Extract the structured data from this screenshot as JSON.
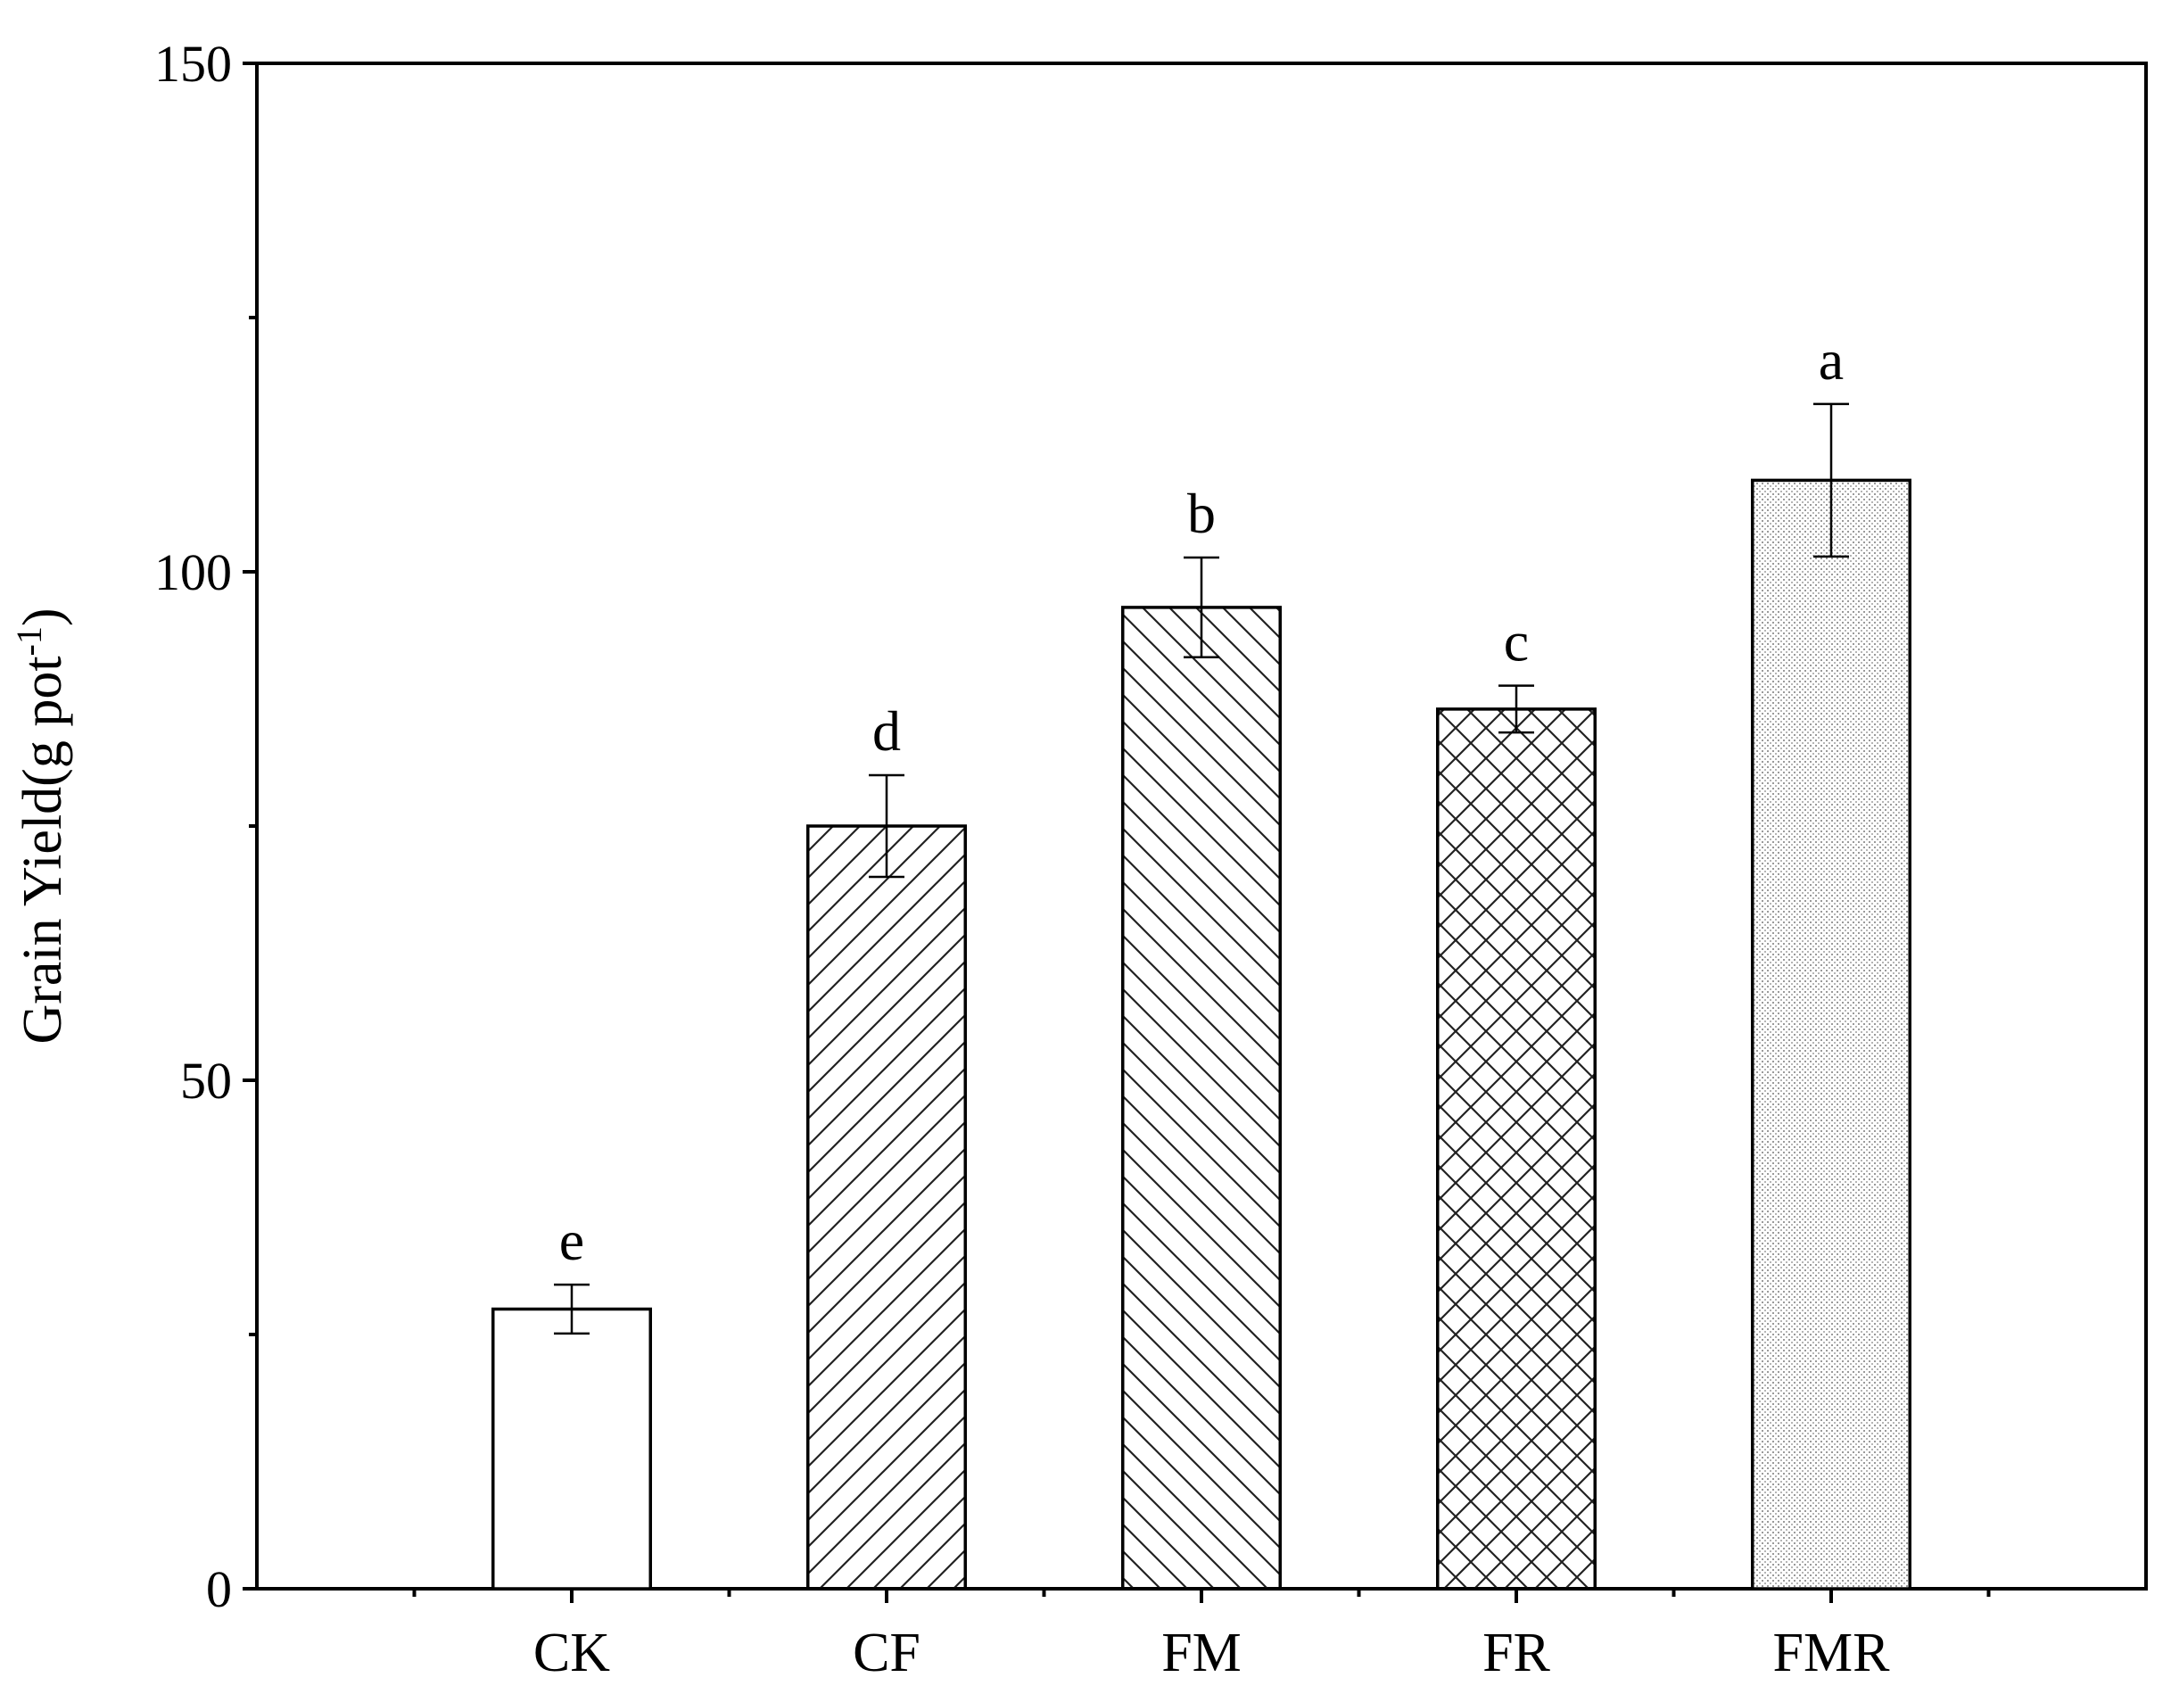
{
  "chart_data": {
    "type": "bar",
    "categories": [
      "CK",
      "CF",
      "FM",
      "FR",
      "FMR"
    ],
    "values": [
      27.5,
      75,
      96.5,
      86.5,
      109
    ],
    "errors": [
      2.4,
      5.0,
      4.9,
      2.3,
      7.5
    ],
    "significance_letters": [
      "e",
      "d",
      "b",
      "c",
      "a"
    ],
    "patterns": [
      "none",
      "diagonal-up",
      "diagonal-down",
      "crosshatch",
      "dots"
    ],
    "title": "",
    "xlabel": "",
    "ylabel_main": "Grain Yield(g pot",
    "ylabel_sup": "-1",
    "ylabel_end": ")",
    "ylim": [
      0,
      150
    ],
    "yticks": [
      0,
      50,
      100,
      150
    ],
    "grid": false,
    "bar_fill": "#ffffff",
    "stroke_color": "#000000",
    "pattern_color": "#222222"
  }
}
